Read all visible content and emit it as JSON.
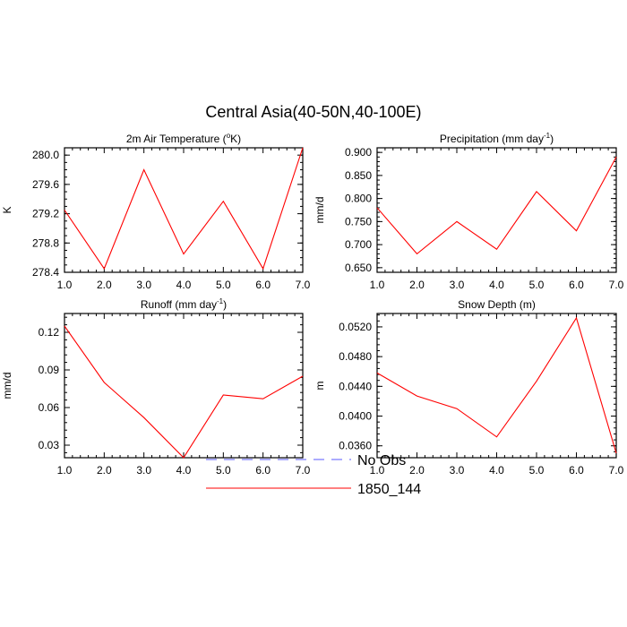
{
  "figure_title": "Central Asia(40-50N,40-100E)",
  "colors": {
    "model": "#ff0000",
    "obs": "#5a5aff",
    "axis": "#000000"
  },
  "legend": [
    {
      "label": "No Obs",
      "style": "dashed",
      "color": "#5a5aff"
    },
    {
      "label": "1850_144",
      "style": "solid",
      "color": "#ff0000"
    }
  ],
  "chart_data": [
    {
      "type": "line",
      "title_main": "2m Air Temperature (",
      "title_sup": "o",
      "title_end": "K)",
      "ylabel": "K",
      "x": [
        1,
        2,
        3,
        4,
        5,
        6,
        7
      ],
      "xlim": [
        1,
        7
      ],
      "xticks": [
        "1.0",
        "2.0",
        "3.0",
        "4.0",
        "5.0",
        "6.0",
        "7.0"
      ],
      "ylim": [
        278.4,
        280.1
      ],
      "yticks": [
        "278.4",
        "278.8",
        "279.2",
        "279.6",
        "280.0"
      ],
      "ytick_values": [
        278.4,
        278.8,
        279.2,
        279.6,
        280.0
      ],
      "yminor_step": 0.1,
      "series": [
        {
          "name": "1850_144",
          "values": [
            279.25,
            278.45,
            279.8,
            278.65,
            279.37,
            278.45,
            280.1
          ]
        }
      ]
    },
    {
      "type": "line",
      "title_main": "Precipitation (mm day",
      "title_sup": "-1",
      "title_end": ")",
      "ylabel": "mm/d",
      "x": [
        1,
        2,
        3,
        4,
        5,
        6,
        7
      ],
      "xlim": [
        1,
        7
      ],
      "xticks": [
        "1.0",
        "2.0",
        "3.0",
        "4.0",
        "5.0",
        "6.0",
        "7.0"
      ],
      "ylim": [
        0.64,
        0.91
      ],
      "yticks": [
        "0.650",
        "0.700",
        "0.750",
        "0.800",
        "0.850",
        "0.900"
      ],
      "ytick_values": [
        0.65,
        0.7,
        0.75,
        0.8,
        0.85,
        0.9
      ],
      "yminor_step": 0.01,
      "series": [
        {
          "name": "1850_144",
          "values": [
            0.78,
            0.68,
            0.75,
            0.69,
            0.815,
            0.73,
            0.89
          ]
        }
      ]
    },
    {
      "type": "line",
      "title_main": "Runoff (mm day",
      "title_sup": "-1",
      "title_end": ")",
      "ylabel": "mm/d",
      "x": [
        1,
        2,
        3,
        4,
        5,
        6,
        7
      ],
      "xlim": [
        1,
        7
      ],
      "xticks": [
        "1.0",
        "2.0",
        "3.0",
        "4.0",
        "5.0",
        "6.0",
        "7.0"
      ],
      "ylim": [
        0.02,
        0.135
      ],
      "yticks": [
        "0.03",
        "0.06",
        "0.09",
        "0.12"
      ],
      "ytick_values": [
        0.03,
        0.06,
        0.09,
        0.12
      ],
      "yminor_step": 0.006,
      "series": [
        {
          "name": "1850_144",
          "values": [
            0.125,
            0.08,
            0.052,
            0.02,
            0.07,
            0.067,
            0.085
          ]
        }
      ]
    },
    {
      "type": "line",
      "title_main": "Snow Depth (m)",
      "title_sup": "",
      "title_end": "",
      "ylabel": "m",
      "x": [
        1,
        2,
        3,
        4,
        5,
        6,
        7
      ],
      "xlim": [
        1,
        7
      ],
      "xticks": [
        "1.0",
        "2.0",
        "3.0",
        "4.0",
        "5.0",
        "6.0",
        "7.0"
      ],
      "ylim": [
        0.0344,
        0.0538
      ],
      "yticks": [
        "0.0360",
        "0.0400",
        "0.0440",
        "0.0480",
        "0.0520"
      ],
      "ytick_values": [
        0.036,
        0.04,
        0.044,
        0.048,
        0.052
      ],
      "yminor_step": 0.0008,
      "series": [
        {
          "name": "1850_144",
          "values": [
            0.0458,
            0.0427,
            0.041,
            0.0372,
            0.0447,
            0.0532,
            0.035
          ]
        }
      ]
    }
  ]
}
